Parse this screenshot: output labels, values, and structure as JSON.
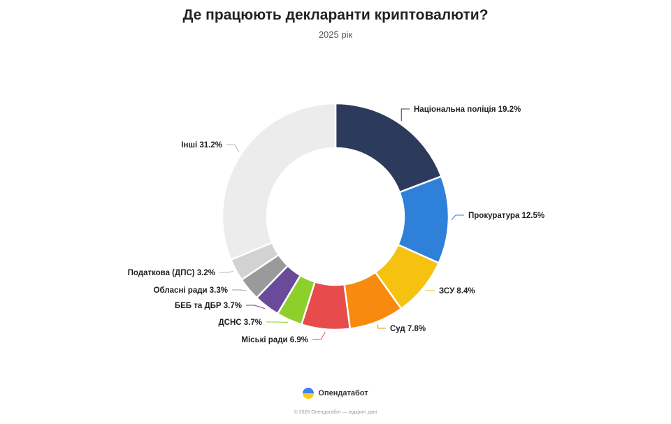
{
  "header": {
    "title": "Де працюють декларанти криптовалюти?",
    "subtitle": "2025 рік"
  },
  "chart_data": {
    "type": "pie",
    "variant": "donut",
    "title": "Де працюють декларанти криптовалюти?",
    "subtitle": "2025 рік",
    "unit": "%",
    "slices": [
      {
        "label": "Національна поліція",
        "value": 19.2,
        "display": "Національна поліція 19.2%",
        "color": "#2c3a5c"
      },
      {
        "label": "Прокуратура",
        "value": 12.5,
        "display": "Прокуратура 12.5%",
        "color": "#2f80d9"
      },
      {
        "label": "ЗСУ",
        "value": 8.4,
        "display": "ЗСУ 8.4%",
        "color": "#f5c30f"
      },
      {
        "label": "Суд",
        "value": 7.8,
        "display": "Суд 7.8%",
        "color": "#f78a0f"
      },
      {
        "label": "Міські ради",
        "value": 6.9,
        "display": "Міські ради 6.9%",
        "color": "#e84b4b"
      },
      {
        "label": "ДСНС",
        "value": 3.7,
        "display": "ДСНС 3.7%",
        "color": "#8fcf2c"
      },
      {
        "label": "БЕБ та ДБР",
        "value": 3.7,
        "display": "БЕБ та ДБР 3.7%",
        "color": "#6b4a9b"
      },
      {
        "label": "Обласні ради",
        "value": 3.3,
        "display": "Обласні ради 3.3%",
        "color": "#9a9a9a"
      },
      {
        "label": "Податкова (ДПС)",
        "value": 3.2,
        "display": "Податкова (ДПС) 3.2%",
        "color": "#d2d2d2"
      },
      {
        "label": "Інші",
        "value": 31.2,
        "display": "Інші 31.2%",
        "color": "#ececec"
      }
    ],
    "legend": "none"
  },
  "footer": {
    "brand": "Опендатабот",
    "copyright": "© 2026 Опендатабот — відкриті дані"
  }
}
